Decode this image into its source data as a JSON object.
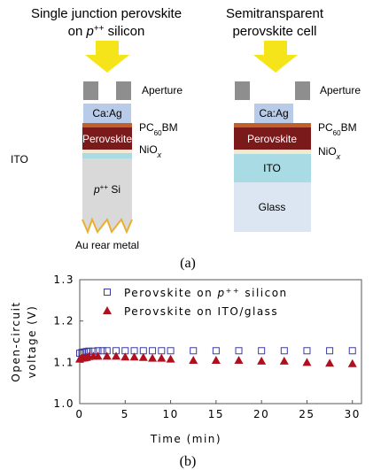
{
  "diagram": {
    "left": {
      "title_line1": "Single junction perovskite",
      "title_line2": [
        "on ",
        "p",
        "++",
        " silicon"
      ],
      "aperture": "Aperture",
      "ca_ag": "Ca:Ag",
      "pcbm": [
        "PC",
        "60",
        "BM"
      ],
      "perovskite": "Perovskite",
      "niox": [
        "NiO",
        "x"
      ],
      "ito": "ITO",
      "si": [
        "p",
        "++",
        " Si"
      ],
      "rear": "Au rear metal"
    },
    "right": {
      "title_line1": "Semitransparent",
      "title_line2": "perovskite cell",
      "aperture": "Aperture",
      "ca_ag": "Ca:Ag",
      "pcbm": [
        "PC",
        "60",
        "BM"
      ],
      "perovskite": "Perovskite",
      "niox": [
        "NiO",
        "x"
      ],
      "ito": "ITO",
      "glass": "Glass"
    },
    "panel_label": "(a)"
  },
  "chart_data": {
    "type": "scatter",
    "panel_label": "(b)",
    "xlabel": "Time (min)",
    "ylabel": [
      "Open-circuit",
      "voltage (V)"
    ],
    "xlim": [
      0,
      31
    ],
    "ylim": [
      1.0,
      1.3
    ],
    "xticks": [
      0,
      5,
      10,
      15,
      20,
      25,
      30
    ],
    "yticks": [
      {
        "value": 1,
        "label": "1.0"
      },
      1.1,
      1.2,
      1.3
    ],
    "series": [
      {
        "name": [
          "Perovskite on ",
          "p",
          "++",
          " silicon"
        ],
        "marker": "square",
        "color": "#3b3ba3",
        "x": [
          0,
          0.25,
          0.5,
          0.75,
          1,
          1.5,
          2,
          2.5,
          3,
          4,
          5,
          6,
          7,
          8,
          9,
          10,
          12.5,
          15,
          17.5,
          20,
          22.5,
          25,
          27.5,
          30
        ],
        "values": [
          1.122,
          1.124,
          1.125,
          1.126,
          1.127,
          1.127,
          1.128,
          1.128,
          1.128,
          1.128,
          1.128,
          1.128,
          1.128,
          1.128,
          1.128,
          1.128,
          1.128,
          1.128,
          1.128,
          1.128,
          1.128,
          1.128,
          1.128,
          1.128
        ]
      },
      {
        "name": "Perovskite on ITO/glass",
        "marker": "triangle",
        "color": "#b0101e",
        "x": [
          0,
          0.25,
          0.5,
          0.75,
          1,
          1.5,
          2,
          3,
          4,
          5,
          6,
          7,
          8,
          9,
          10,
          12.5,
          15,
          17.5,
          20,
          22.5,
          25,
          27.5,
          30
        ],
        "values": [
          1.108,
          1.11,
          1.111,
          1.112,
          1.114,
          1.115,
          1.115,
          1.115,
          1.115,
          1.113,
          1.113,
          1.112,
          1.11,
          1.11,
          1.108,
          1.105,
          1.105,
          1.105,
          1.103,
          1.103,
          1.1,
          1.098,
          1.097
        ]
      }
    ]
  }
}
